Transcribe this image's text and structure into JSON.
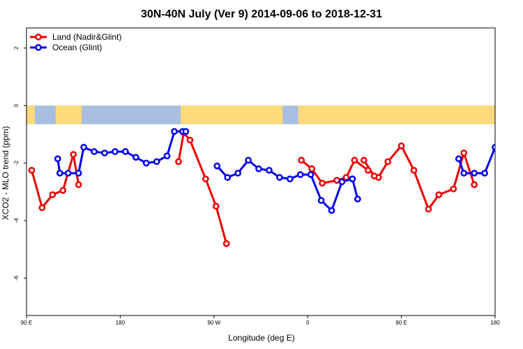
{
  "chart_data": {
    "type": "line",
    "title": "30N-40N July (Ver 9)   2014-09-06 to 2018-12-31",
    "xlabel": "Longitude (deg E)",
    "ylabel": "XCO2 - MLO trend (ppm)",
    "xlim": [
      90,
      540
    ],
    "ylim": [
      -7.3,
      2.7
    ],
    "x_ticks": [
      {
        "value": 90,
        "label": "90 E"
      },
      {
        "value": 180,
        "label": "180"
      },
      {
        "value": 270,
        "label": "90 W"
      },
      {
        "value": 360,
        "label": "0"
      },
      {
        "value": 450,
        "label": "90 E"
      },
      {
        "value": 540,
        "label": "180"
      }
    ],
    "y_ticks": [
      {
        "value": 2,
        "label": "2"
      },
      {
        "value": 0,
        "label": "0"
      },
      {
        "value": -2,
        "label": "-2"
      },
      {
        "value": -4,
        "label": "-4"
      },
      {
        "value": -6,
        "label": "-6"
      }
    ],
    "legend_position": "top-left",
    "series": [
      {
        "name": "Land (Nadir&Glint)",
        "color": "#ee0000",
        "segments": [
          {
            "x": [
              95,
              105,
              115,
              125,
              135,
              140
            ],
            "y": [
              -2.25,
              -3.55,
              -3.1,
              -2.95,
              -1.7,
              -2.75
            ]
          },
          {
            "x": [
              236,
              241,
              247,
              262,
              272,
              282,
              282
            ],
            "y": [
              -1.95,
              -0.95,
              -1.2,
              -2.55,
              -3.5,
              -4.8,
              -4.8
            ]
          },
          {
            "x": [
              354,
              364,
              374,
              388,
              397,
              405,
              418,
              428,
              437,
              450,
              462,
              476,
              486,
              500,
              510,
              520
            ],
            "y": [
              -1.9,
              -2.2,
              -2.7,
              -2.6,
              -2.5,
              -1.9,
              -2.25,
              -2.5,
              -1.95,
              -1.4,
              -2.25,
              -3.6,
              -3.1,
              -2.9,
              -1.65,
              -2.75
            ]
          },
          {
            "x": [
              424,
              414
            ],
            "y": [
              -2.45,
              -1.9
            ]
          }
        ]
      },
      {
        "name": "Ocean (Glint)",
        "color": "#0000ee",
        "segments": [
          {
            "x": [
              120,
              122,
              130,
              140,
              145,
              155,
              165,
              175,
              185,
              195,
              205,
              215,
              225,
              232,
              240,
              243
            ],
            "y": [
              -1.85,
              -2.35,
              -2.35,
              -2.35,
              -1.45,
              -1.6,
              -1.65,
              -1.6,
              -1.6,
              -1.8,
              -2.0,
              -1.95,
              -1.75,
              -0.9,
              -0.9,
              -0.9
            ]
          },
          {
            "x": [
              273,
              283,
              293,
              303,
              313,
              323,
              333,
              343,
              353,
              363,
              373,
              383,
              393,
              403
            ],
            "y": [
              -2.1,
              -2.5,
              -2.35,
              -1.9,
              -2.2,
              -2.25,
              -2.5,
              -2.55,
              -2.4,
              -2.4,
              -3.3,
              -3.65,
              -2.65,
              -2.55
            ]
          },
          {
            "x": [
              403,
              408
            ],
            "y": [
              -2.55,
              -3.25
            ]
          },
          {
            "x": [
              505,
              510,
              520,
              530,
              540,
              550,
              560
            ],
            "y": [
              -1.85,
              -2.35,
              -2.35,
              -2.35,
              -1.45,
              -1.55,
              -1.65
            ]
          }
        ]
      }
    ],
    "map_strip": {
      "y_top": 0,
      "y_bottom": -0.65,
      "ocean_color": "#a8bfdf",
      "land_color": "#ffd97a",
      "land_ranges": [
        [
          90,
          98
        ],
        [
          118,
          143
        ],
        [
          238,
          336
        ],
        [
          351,
          415
        ],
        [
          414,
          541
        ]
      ]
    }
  }
}
